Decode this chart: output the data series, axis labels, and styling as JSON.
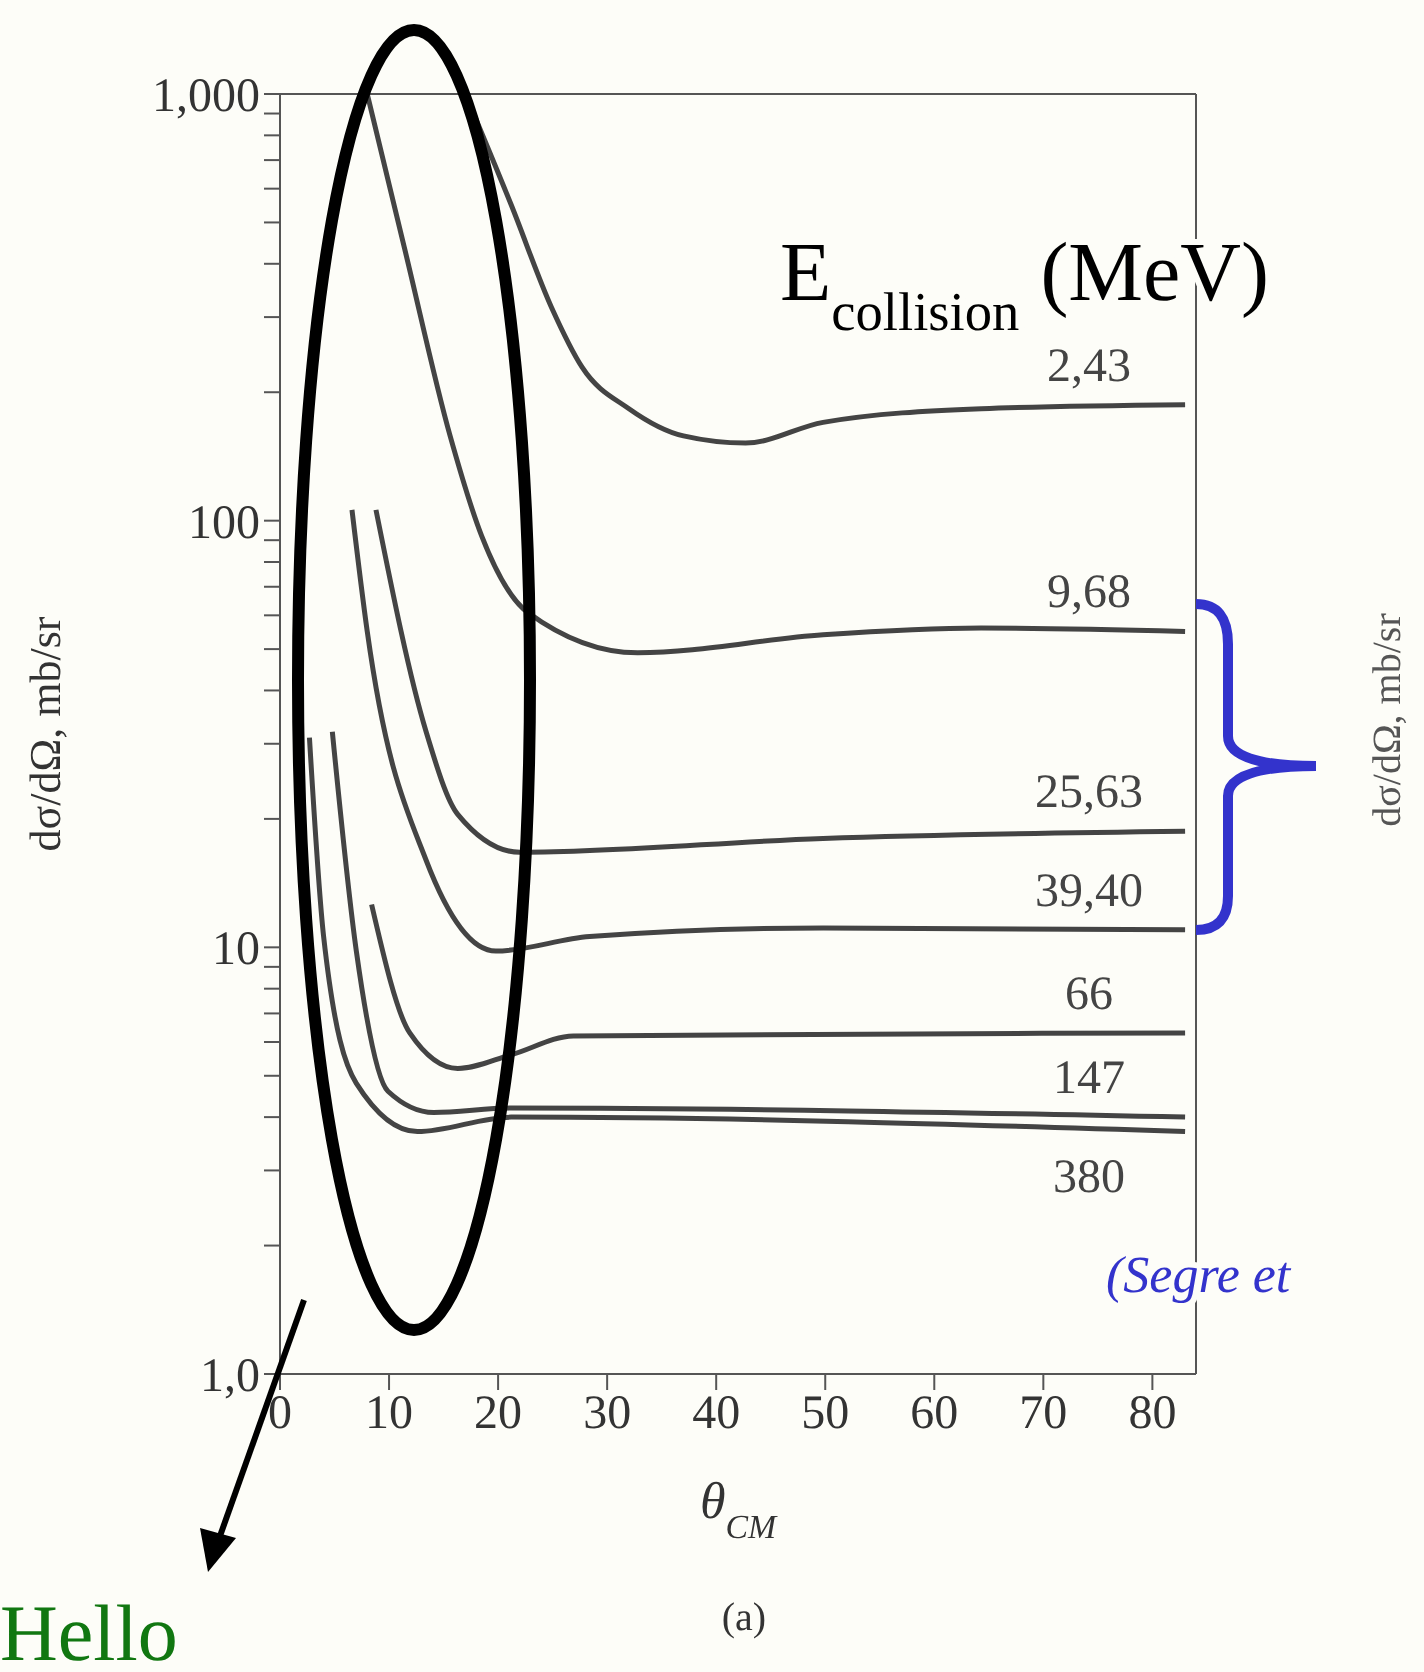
{
  "chart_data": {
    "type": "line",
    "xlabel": "θ$_{CM}$",
    "ylabel": "dσ/dΩ, mb/sr",
    "log": true,
    "xlim": [
      0,
      84
    ],
    "xticks": [
      0,
      10,
      20,
      30,
      40,
      50,
      60,
      70,
      80
    ],
    "ylim": [
      1,
      1000
    ],
    "yticks": [
      {
        "value": 1,
        "label": "1,0"
      },
      {
        "value": 2,
        "label": null
      },
      {
        "value": 3,
        "label": null
      },
      {
        "value": 4,
        "label": null
      },
      {
        "value": 5,
        "label": null
      },
      {
        "value": 6,
        "label": null
      },
      {
        "value": 7,
        "label": null
      },
      {
        "value": 8,
        "label": null
      },
      {
        "value": 9,
        "label": null
      },
      10,
      {
        "value": 20,
        "label": null
      },
      {
        "value": 30,
        "label": null
      },
      {
        "value": 40,
        "label": null
      },
      {
        "value": 50,
        "label": null
      },
      {
        "value": 60,
        "label": null
      },
      {
        "value": 70,
        "label": null
      },
      {
        "value": 80,
        "label": null
      },
      {
        "value": 90,
        "label": null
      },
      100,
      {
        "value": 200,
        "label": null
      },
      {
        "value": 300,
        "label": null
      },
      {
        "value": 400,
        "label": null
      },
      {
        "value": 500,
        "label": null
      },
      {
        "value": 600,
        "label": null
      },
      {
        "value": 700,
        "label": null
      },
      {
        "value": 800,
        "label": null
      },
      {
        "value": 900,
        "label": null
      },
      {
        "value": 1000,
        "label": "1,000"
      }
    ],
    "series": [
      {
        "name": "2,43",
        "color": "#444444",
        "x": [
          17,
          21.2,
          24.9,
          27.7,
          32,
          37,
          42.7,
          49.8,
          64.3,
          83
        ],
        "values": [
          1000,
          550,
          316,
          229,
          183,
          158,
          152,
          170,
          183,
          187
        ]
      },
      {
        "name": "9,68",
        "color": "#444444",
        "x": [
          8,
          11.4,
          15.6,
          18.5,
          22.7,
          32.8,
          49.8,
          64.3,
          83
        ],
        "values": [
          1000,
          437,
          158,
          92,
          61,
          49,
          54,
          56,
          55
        ]
      },
      {
        "name": "25,63",
        "color": "#444444",
        "x": [
          8.8,
          13.4,
          16.3,
          22,
          49.8,
          83
        ],
        "values": [
          106,
          32,
          20.5,
          16.7,
          18,
          18.7
        ]
      },
      {
        "name": "39,40",
        "color": "#444444",
        "x": [
          6.6,
          8,
          13.4,
          19.8,
          28.4,
          49.8,
          83
        ],
        "values": [
          106,
          55,
          16,
          9.8,
          10.6,
          11.1,
          11
        ]
      },
      {
        "name": "66",
        "color": "#444444",
        "x": [
          8.4,
          11.9,
          16.3,
          21.2,
          26.9,
          83
        ],
        "values": [
          12.6,
          6.3,
          5.2,
          5.6,
          6.2,
          6.3
        ]
      },
      {
        "name": "147",
        "color": "#444444",
        "x": [
          4.8,
          7,
          9.9,
          14.1,
          21.2,
          83
        ],
        "values": [
          32,
          9.8,
          4.6,
          4.1,
          4.2,
          4
        ]
      },
      {
        "name": "380",
        "color": "#444444",
        "x": [
          2.7,
          4,
          7,
          12.6,
          21.2,
          83
        ],
        "values": [
          31,
          10.6,
          4.8,
          3.7,
          4,
          3.7
        ]
      }
    ],
    "annotations": [
      "E$_{collision}$ (MeV)",
      "(Segre et",
      "Hello",
      "(a)",
      "dσ/dΩ, mb/sr"
    ]
  }
}
